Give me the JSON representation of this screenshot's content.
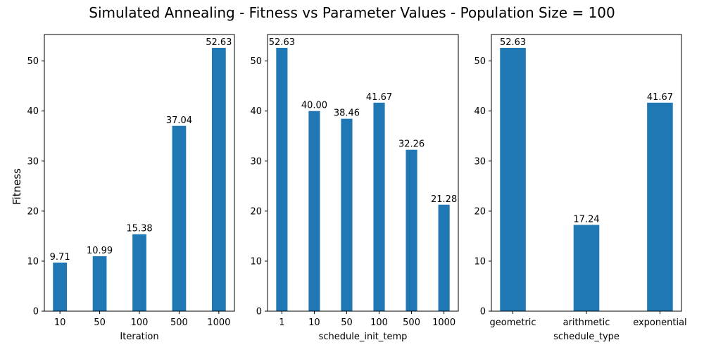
{
  "suptitle": "Simulated Annealing - Fitness vs Parameter Values - Population Size = 100",
  "shared_ylabel": "Fitness",
  "bar_color": "#1f77b4",
  "chart_data": [
    {
      "type": "bar",
      "categories": [
        "10",
        "50",
        "100",
        "500",
        "1000"
      ],
      "values": [
        9.71,
        10.99,
        15.38,
        37.04,
        52.63
      ],
      "value_labels": [
        "9.71",
        "10.99",
        "15.38",
        "37.04",
        "52.63"
      ],
      "xlabel": "Iteration",
      "ylabel": "Fitness",
      "ylim": [
        0,
        55.3
      ],
      "yticks": [
        0,
        10,
        20,
        30,
        40,
        50
      ],
      "grid": false
    },
    {
      "type": "bar",
      "categories": [
        "1",
        "10",
        "50",
        "100",
        "500",
        "1000"
      ],
      "values": [
        52.63,
        40.0,
        38.46,
        41.67,
        32.26,
        21.28
      ],
      "value_labels": [
        "52.63",
        "40.00",
        "38.46",
        "41.67",
        "32.26",
        "21.28"
      ],
      "xlabel": "schedule_init_temp",
      "ylim": [
        0,
        55.3
      ],
      "yticks": [
        0,
        10,
        20,
        30,
        40,
        50
      ],
      "grid": false
    },
    {
      "type": "bar",
      "categories": [
        "geometric",
        "arithmetic",
        "exponential"
      ],
      "values": [
        52.63,
        17.24,
        41.67
      ],
      "value_labels": [
        "52.63",
        "17.24",
        "41.67"
      ],
      "xlabel": "schedule_type",
      "ylim": [
        0,
        55.3
      ],
      "yticks": [
        0,
        10,
        20,
        30,
        40,
        50
      ],
      "grid": false
    }
  ]
}
